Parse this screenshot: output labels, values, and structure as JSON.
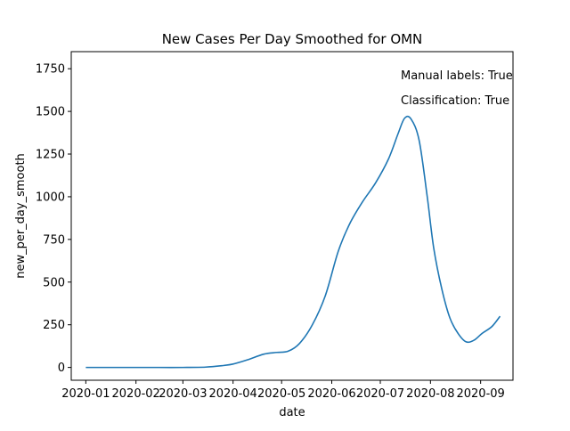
{
  "chart_data": {
    "type": "line",
    "title": "New Cases Per Day Smoothed for OMN",
    "xlabel": "date",
    "ylabel": "new_per_day_smooth",
    "annotations": [
      "Manual labels: True",
      "Classification: True"
    ],
    "xlim": [
      "2019-12-23",
      "2020-09-21"
    ],
    "ylim": [
      -75,
      1850
    ],
    "xticks": [
      "2020-01",
      "2020-02",
      "2020-03",
      "2020-04",
      "2020-05",
      "2020-06",
      "2020-07",
      "2020-08",
      "2020-09"
    ],
    "yticks": [
      0,
      250,
      500,
      750,
      1000,
      1250,
      1500,
      1750
    ],
    "grid": false,
    "line_color": "#1f77b4",
    "series": [
      {
        "x": [
          "2020-01-01",
          "2020-01-15",
          "2020-02-01",
          "2020-02-15",
          "2020-03-01",
          "2020-03-15",
          "2020-03-25",
          "2020-04-01",
          "2020-04-10",
          "2020-04-20",
          "2020-04-28",
          "2020-05-05",
          "2020-05-12",
          "2020-05-20",
          "2020-05-28",
          "2020-06-05",
          "2020-06-12",
          "2020-06-20",
          "2020-06-28",
          "2020-07-06",
          "2020-07-12",
          "2020-07-16",
          "2020-07-20",
          "2020-07-25",
          "2020-07-30",
          "2020-08-03",
          "2020-08-08",
          "2020-08-13",
          "2020-08-18",
          "2020-08-23",
          "2020-08-28",
          "2020-09-02",
          "2020-09-08",
          "2020-09-13"
        ],
        "y": [
          0,
          0,
          0,
          0,
          0,
          2,
          10,
          20,
          45,
          78,
          88,
          95,
          140,
          250,
          420,
          680,
          840,
          970,
          1080,
          1220,
          1370,
          1460,
          1455,
          1330,
          1000,
          700,
          460,
          290,
          200,
          150,
          160,
          200,
          240,
          300
        ]
      }
    ]
  }
}
